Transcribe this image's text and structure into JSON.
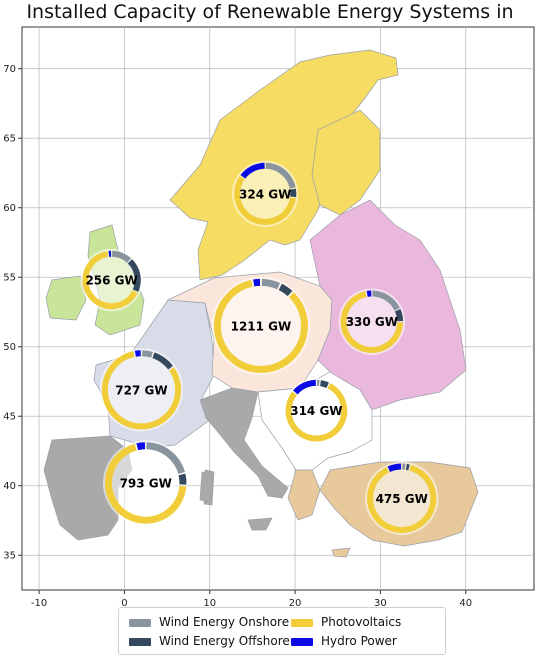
{
  "title": "Installed Capacity of Renewable Energy Systems in Europe",
  "axes": {
    "x_ticks": [
      "-10",
      "0",
      "10",
      "20",
      "30",
      "40"
    ],
    "y_ticks": [
      "35",
      "40",
      "45",
      "50",
      "55",
      "60",
      "65",
      "70"
    ],
    "x_range": [
      -12,
      48
    ],
    "y_range": [
      32.5,
      73
    ],
    "grid": true
  },
  "colors": {
    "wind_onshore": "#8a949f",
    "wind_offshore": "#34495e",
    "photovoltaics": "#f2cd3a",
    "hydro": "#0a0ae6"
  },
  "legend": {
    "items": [
      {
        "label": "Wind Energy Onshore",
        "color": "#8a949f"
      },
      {
        "label": "Photovoltaics",
        "color": "#f2cd3a"
      },
      {
        "label": "Wind Energy Offshore",
        "color": "#34495e"
      },
      {
        "label": "Hydro Power",
        "color": "#0a0ae6"
      }
    ]
  },
  "regions": [
    {
      "label": "256 GW",
      "region_color": "#c9e59a",
      "lon": -1.5,
      "lat": 54.8,
      "shares": {
        "onshore": 0.12,
        "offshore": 0.2,
        "pv": 0.66,
        "hydro": 0.02
      }
    },
    {
      "label": "324 GW",
      "region_color": "#f6dc62",
      "lon": 16.5,
      "lat": 61.0,
      "shares": {
        "onshore": 0.22,
        "offshore": 0.05,
        "pv": 0.58,
        "hydro": 0.15
      }
    },
    {
      "label": "1211 GW",
      "region_color": "#fbe6dc",
      "lon": 16.0,
      "lat": 51.5,
      "shares": {
        "onshore": 0.07,
        "offshore": 0.05,
        "pv": 0.85,
        "hydro": 0.03
      }
    },
    {
      "label": "330 GW",
      "region_color": "#eab8dc",
      "lon": 29.0,
      "lat": 51.8,
      "shares": {
        "onshore": 0.18,
        "offshore": 0.07,
        "pv": 0.72,
        "hydro": 0.03
      }
    },
    {
      "label": "727 GW",
      "region_color": "#d8dce9",
      "lon": 2.0,
      "lat": 46.9,
      "shares": {
        "onshore": 0.05,
        "offshore": 0.1,
        "pv": 0.82,
        "hydro": 0.03
      }
    },
    {
      "label": "314 GW",
      "region_color": "#ffffff",
      "lon": 22.5,
      "lat": 45.4,
      "shares": {
        "onshore": 0.02,
        "offshore": 0.05,
        "pv": 0.79,
        "hydro": 0.14
      }
    },
    {
      "label": "793 GW",
      "region_color": "#a9a9a9",
      "lon": 2.5,
      "lat": 40.2,
      "shares": {
        "onshore": 0.21,
        "offshore": 0.05,
        "pv": 0.7,
        "hydro": 0.04
      }
    },
    {
      "label": "475 GW",
      "region_color": "#e7c99b",
      "lon": 32.5,
      "lat": 39.1,
      "shares": {
        "onshore": 0.02,
        "offshore": 0.02,
        "pv": 0.89,
        "hydro": 0.07
      }
    }
  ],
  "chart_data": {
    "type": "donut-map",
    "title": "Installed Capacity of Renewable Energy Systems in Europe",
    "series": [
      "Wind Energy Onshore",
      "Wind Energy Offshore",
      "Photovoltaics",
      "Hydro Power"
    ],
    "totals_gw": [
      256,
      324,
      1211,
      330,
      727,
      314,
      793,
      475
    ]
  }
}
